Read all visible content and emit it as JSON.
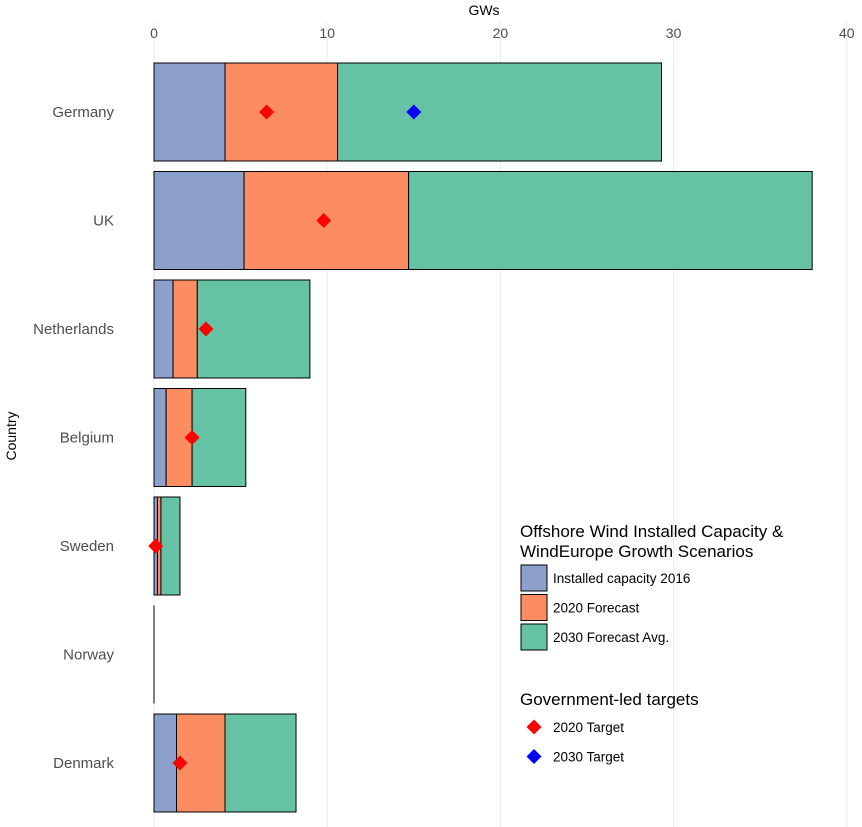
{
  "chart_data": {
    "type": "bar",
    "orientation": "horizontal",
    "stacked": true,
    "xlabel": "GWs",
    "ylabel": "Country",
    "xlim": [
      0,
      40
    ],
    "xticks": [
      0,
      10,
      20,
      30,
      40
    ],
    "categories": [
      "Germany",
      "UK",
      "Netherlands",
      "Belgium",
      "Sweden",
      "Norway",
      "Denmark"
    ],
    "series": [
      {
        "name": "Installed capacity 2016",
        "color": "#8DA0CB",
        "values": [
          4.1,
          5.2,
          1.1,
          0.7,
          0.2,
          0.0,
          1.3
        ]
      },
      {
        "name": "2020 Forecast",
        "color": "#FC8D62",
        "values": [
          6.5,
          9.5,
          1.4,
          1.5,
          0.2,
          0.0,
          2.8
        ]
      },
      {
        "name": "2030 Forecast Avg.",
        "color": "#66C2A5",
        "values": [
          18.7,
          23.3,
          6.5,
          3.1,
          1.1,
          0.0,
          4.1
        ]
      }
    ],
    "targets": [
      {
        "name": "2020 Target",
        "color": "#FF0000",
        "values": [
          6.5,
          9.8,
          3.0,
          2.2,
          0.1,
          null,
          1.5
        ]
      },
      {
        "name": "2030 Target",
        "color": "#0000FF",
        "values": [
          15.0,
          null,
          null,
          null,
          null,
          null,
          null
        ]
      }
    ],
    "legend": {
      "position": "bottom-right",
      "fill_title": "Offshore Wind Installed Capacity & WindEurope Growth Scenarios",
      "fill_title_lines": [
        "Offshore Wind Installed Capacity &",
        "WindEurope Growth Scenarios"
      ],
      "marker_title": "Government-led targets"
    },
    "grid": true
  }
}
